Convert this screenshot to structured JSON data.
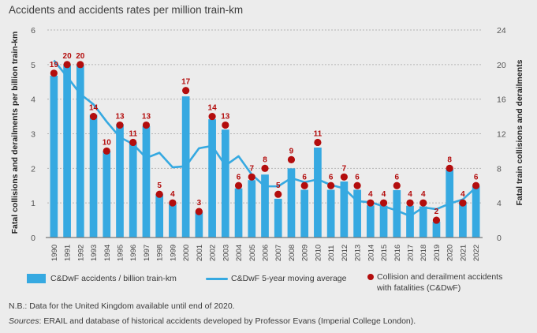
{
  "title": "Accidents and accidents rates per million train-km",
  "chart_data": {
    "type": "bar",
    "title": "Accidents and accidents rates per million train-km",
    "categories": [
      "1990",
      "1991",
      "1992",
      "1993",
      "1994",
      "1995",
      "1996",
      "1997",
      "1998",
      "1999",
      "2000",
      "2001",
      "2002",
      "2003",
      "2004",
      "2005",
      "2006",
      "2007",
      "2008",
      "2009",
      "2010",
      "2011",
      "2012",
      "2013",
      "2014",
      "2015",
      "2016",
      "2017",
      "2018",
      "2019",
      "2020",
      "2021",
      "2022"
    ],
    "ylabel": "Fatal collisions and derailments per billion train-km",
    "y2label": "Fatal train collisions and derailments",
    "ylim": [
      0,
      6
    ],
    "y2lim": [
      0,
      24
    ],
    "yticks": [
      "0",
      "1",
      "2",
      "3",
      "4",
      "5",
      "6"
    ],
    "y2ticks": [
      "0",
      "4",
      "8",
      "12",
      "16",
      "20",
      "24"
    ],
    "grid": true,
    "series": [
      {
        "name": "C&DwF accidents / billion train-km",
        "type": "bar",
        "axis": "left",
        "color": "#36a9e1",
        "values": [
          4.68,
          4.98,
          5.0,
          3.55,
          2.5,
          3.28,
          2.75,
          3.22,
          1.25,
          0.97,
          4.08,
          0.74,
          3.42,
          3.12,
          1.42,
          1.66,
          1.82,
          1.12,
          2.0,
          1.38,
          2.6,
          1.38,
          1.62,
          1.38,
          0.93,
          0.92,
          1.37,
          0.92,
          0.9,
          0.46,
          1.97,
          1.03,
          1.48
        ]
      },
      {
        "name": "C&DwF 5-year moving average",
        "type": "line",
        "axis": "left",
        "color": "#36a9e1",
        "values": [
          5.12,
          4.65,
          4.15,
          3.85,
          3.35,
          2.9,
          2.7,
          2.3,
          2.45,
          2.03,
          2.06,
          2.58,
          2.65,
          2.08,
          2.35,
          1.82,
          1.48,
          1.48,
          1.72,
          1.6,
          1.68,
          1.52,
          1.42,
          1.05,
          1.02,
          0.9,
          0.78,
          0.62,
          0.87,
          0.82,
          0.98,
          1.1,
          1.45
        ]
      },
      {
        "name": "Collision and derailment accidents with fatalities (C&DwF)",
        "type": "scatter",
        "axis": "right",
        "color": "#b30d0d",
        "values": [
          19,
          20,
          20,
          14,
          10,
          13,
          11,
          13,
          5,
          4,
          17,
          3,
          14,
          13,
          6,
          7,
          8,
          5,
          9,
          6,
          11,
          6,
          7,
          6,
          4,
          4,
          6,
          4,
          4,
          2,
          8,
          4,
          6
        ]
      }
    ],
    "legend_position": "bottom"
  },
  "legend": {
    "bar_label": "C&DwF accidents / billion train-km",
    "line_label": "C&DwF 5-year moving average",
    "dot_label_1": "Collision and derailment accidents",
    "dot_label_2": "with fatalities (C&DwF)"
  },
  "notes": {
    "nb": "N.B.: Data for the United Kingdom available until end of 2020.",
    "sources_prefix": "Sources",
    "sources_text": ": ERAIL and database of historical accidents developed by Professor Evans (Imperial College London)."
  }
}
